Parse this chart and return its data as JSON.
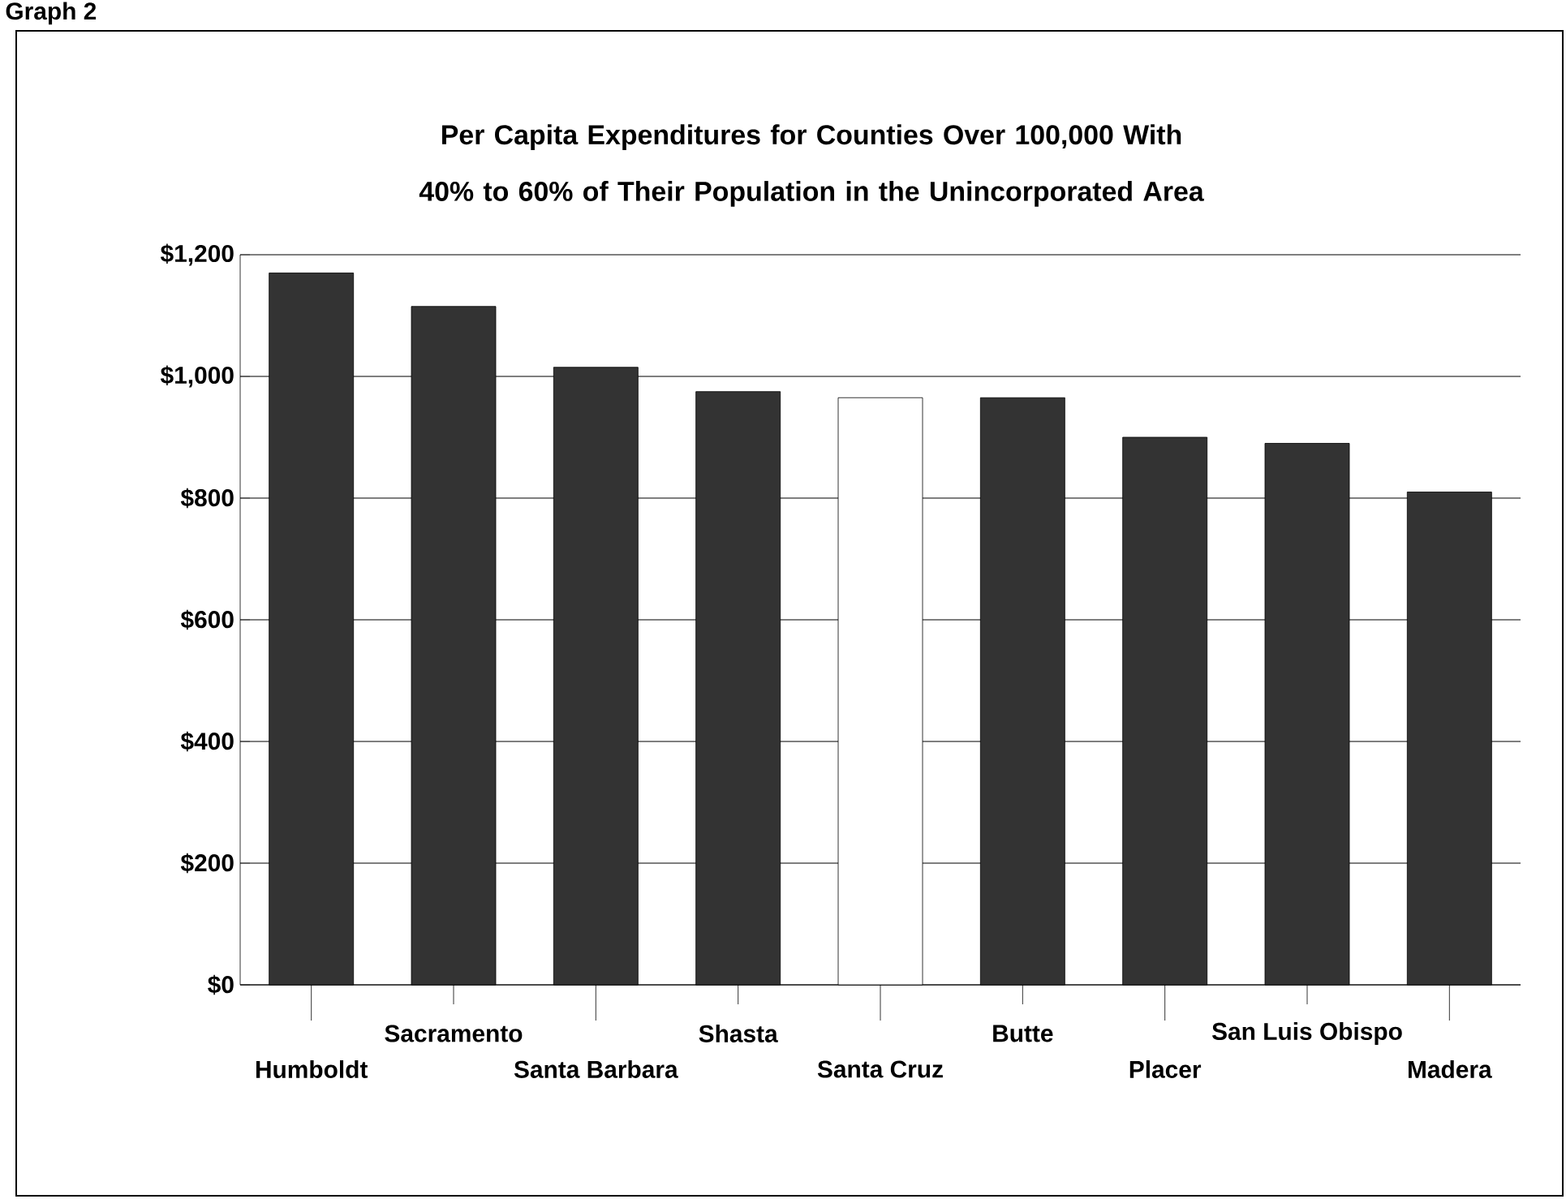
{
  "chart_data": {
    "type": "bar",
    "title": "Per Capita Expenditures for Counties Over 100,000 With 40% to 60% of Their Population in the Unincorporated Area",
    "categories": [
      "Humboldt",
      "Sacramento",
      "Santa Barbara",
      "Shasta",
      "Santa Cruz",
      "Butte",
      "Placer",
      "San Luis Obispo",
      "Madera"
    ],
    "values": [
      1170,
      1115,
      1015,
      975,
      965,
      965,
      900,
      890,
      810
    ],
    "colors": [
      "#333333",
      "#333333",
      "#333333",
      "#333333",
      "#ffffff",
      "#333333",
      "#333333",
      "#333333",
      "#333333"
    ],
    "ylim": [
      0,
      1200
    ],
    "yticks": [
      {
        "value": 0,
        "label": "$0"
      },
      {
        "value": 200,
        "label": "$200"
      },
      {
        "value": 400,
        "label": "$400"
      },
      {
        "value": 600,
        "label": "$600"
      },
      {
        "value": 800,
        "label": "$800"
      },
      {
        "value": 1000,
        "label": "$1,000"
      },
      {
        "value": 1200,
        "label": "$1,200"
      }
    ],
    "grid": "y",
    "annotations": [
      "Graph 2"
    ]
  }
}
